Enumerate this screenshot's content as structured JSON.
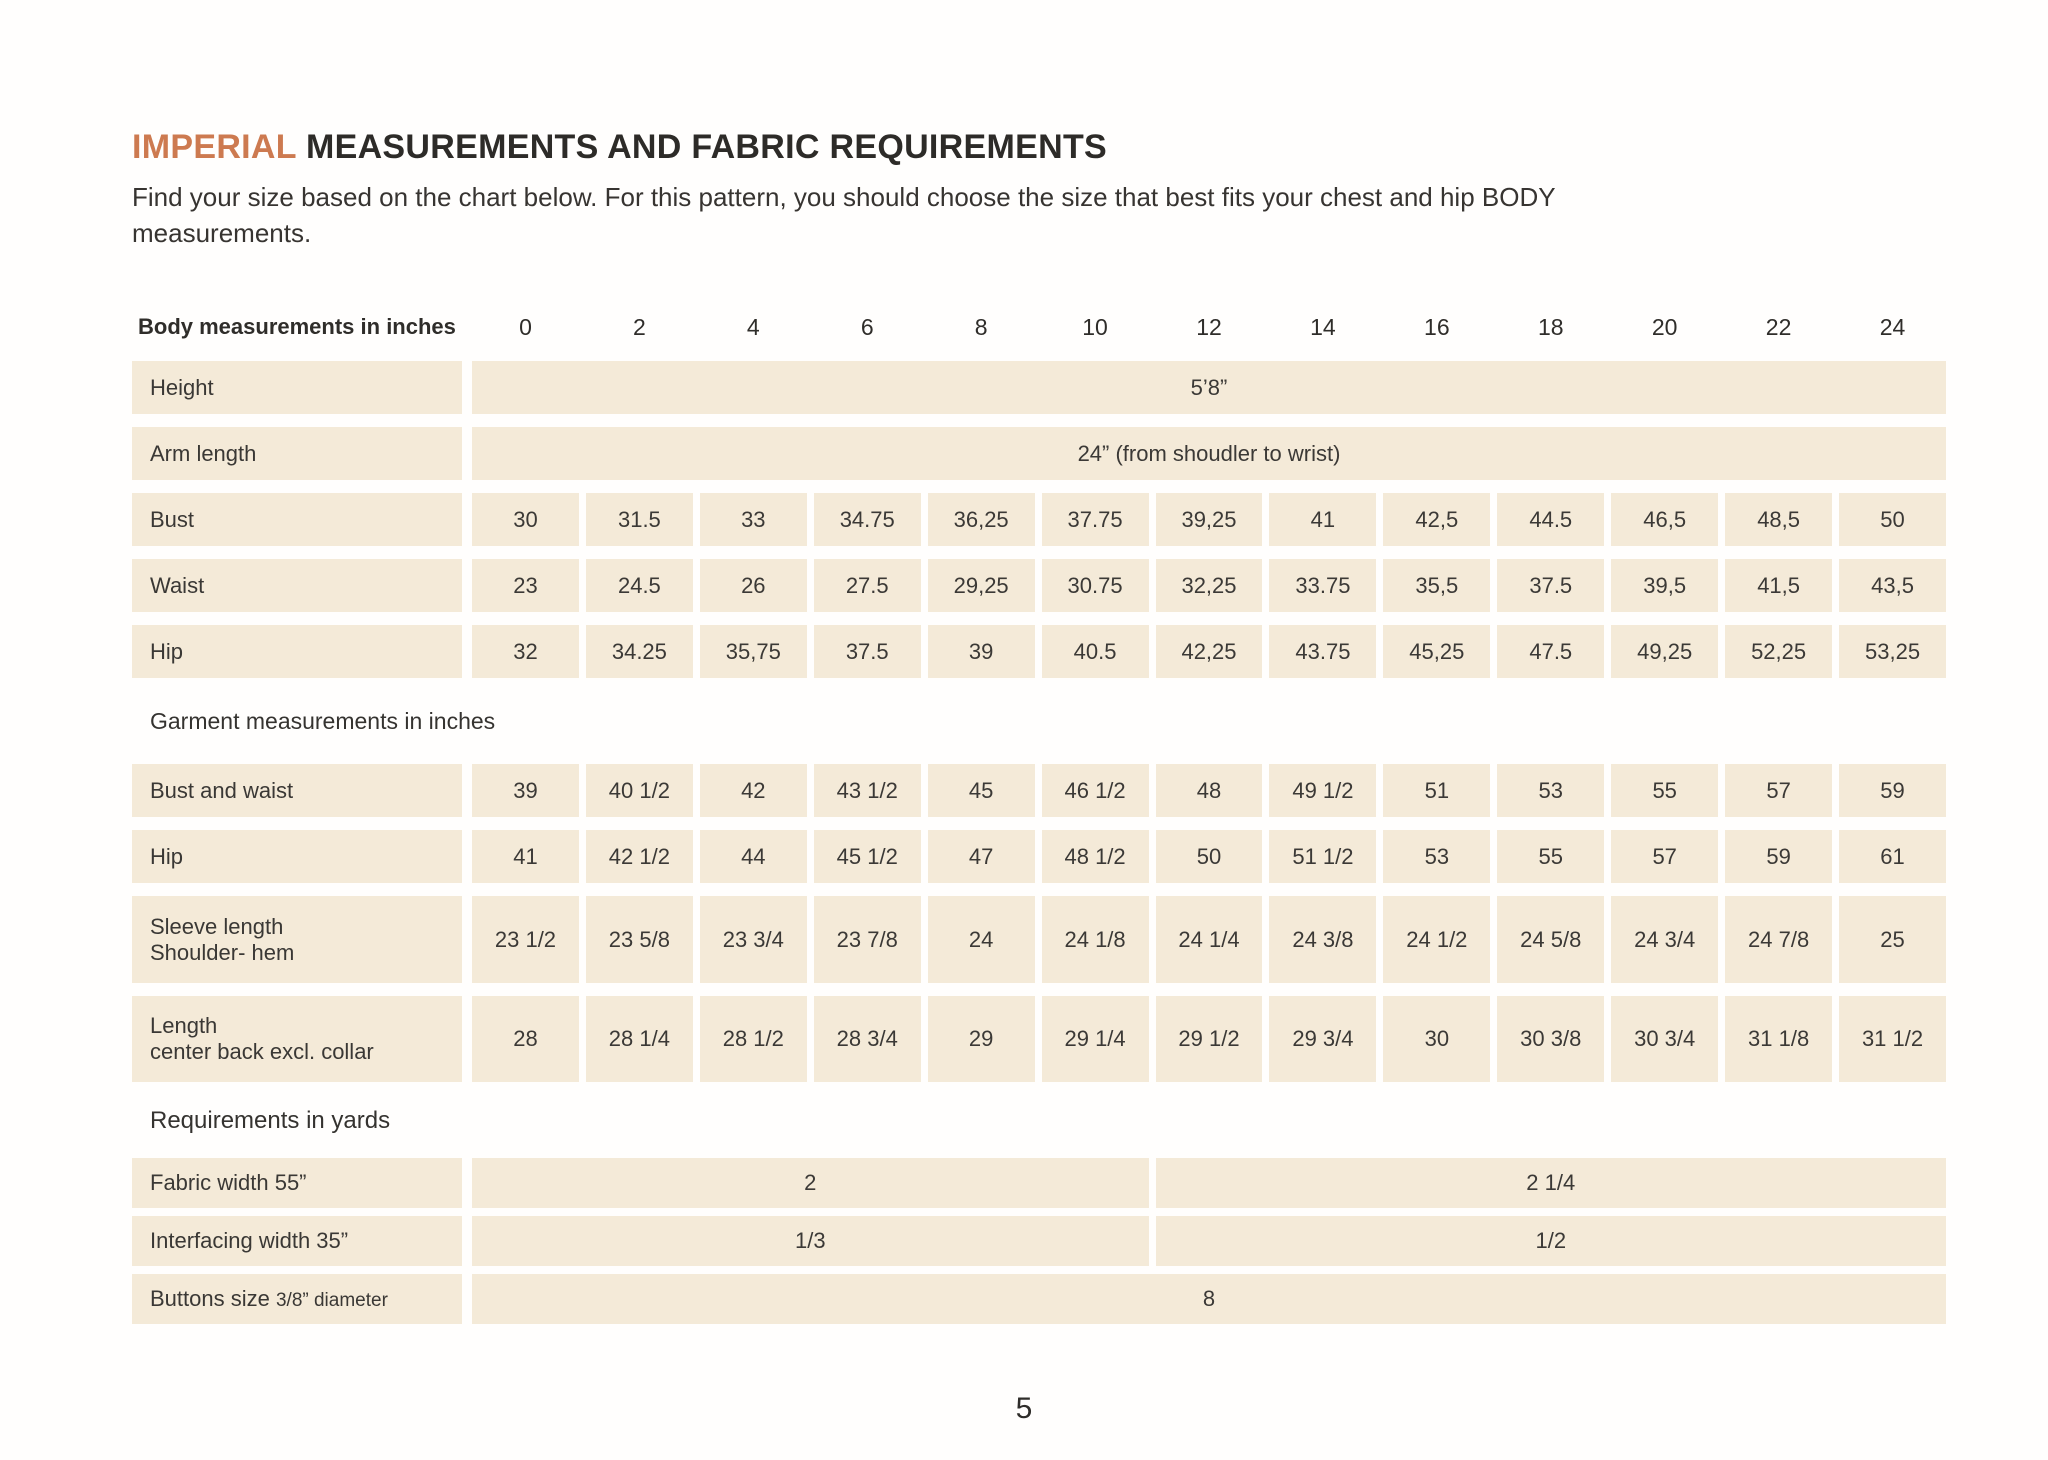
{
  "header": {
    "title_highlight": "IMPERIAL",
    "title_rest": " MEASUREMENTS AND FABRIC REQUIREMENTS",
    "subtitle_line1": "Find your size based on the chart below. For this pattern, you should choose the size that best fits your chest and hip BODY",
    "subtitle_line2": "measurements."
  },
  "footer": {
    "page_number": "5"
  },
  "colors": {
    "accent": "#cd7a50",
    "band": "#f4ead8",
    "text": "#3a3835"
  },
  "table": {
    "header_label": "Body measurements in inches",
    "sizes": [
      "0",
      "2",
      "4",
      "6",
      "8",
      "10",
      "12",
      "14",
      "16",
      "18",
      "20",
      "22",
      "24"
    ],
    "rows": [
      {
        "kind": "span",
        "label": "Height",
        "value": "5’8”"
      },
      {
        "kind": "span",
        "label": "Arm length",
        "value": "24” (from shoudler to wrist)"
      },
      {
        "kind": "cells",
        "label": "Bust",
        "values": [
          "30",
          "31.5",
          "33",
          "34.75",
          "36,25",
          "37.75",
          "39,25",
          "41",
          "42,5",
          "44.5",
          "46,5",
          "48,5",
          "50"
        ]
      },
      {
        "kind": "cells",
        "label": "Waist",
        "values": [
          "23",
          "24.5",
          "26",
          "27.5",
          "29,25",
          "30.75",
          "32,25",
          "33.75",
          "35,5",
          "37.5",
          "39,5",
          "41,5",
          "43,5"
        ]
      },
      {
        "kind": "cells",
        "label": "Hip",
        "values": [
          "32",
          "34.25",
          "35,75",
          "37.5",
          "39",
          "40.5",
          "42,25",
          "43.75",
          "45,25",
          "47.5",
          "49,25",
          "52,25",
          "53,25"
        ]
      },
      {
        "kind": "section",
        "text": "Garment measurements in inches",
        "style": "garment"
      },
      {
        "kind": "cells",
        "label": "Bust and waist",
        "values": [
          "39",
          "40 1/2",
          "42",
          "43 1/2",
          "45",
          "46 1/2",
          "48",
          "49 1/2",
          "51",
          "53",
          "55",
          "57",
          "59"
        ]
      },
      {
        "kind": "cells",
        "label": "Hip",
        "values": [
          "41",
          "42 1/2",
          "44",
          "45 1/2",
          "47",
          "48 1/2",
          "50",
          "51 1/2",
          "53",
          "55",
          "57",
          "59",
          "61"
        ]
      },
      {
        "kind": "cells",
        "label": "Sleeve length",
        "label2": "Shoulder- hem",
        "tall": "h87",
        "values": [
          "23 1/2",
          "23 5/8",
          "23 3/4",
          "23 7/8",
          "24",
          "24 1/8",
          "24 1/4",
          "24 3/8",
          "24 1/2",
          "24 5/8",
          "24 3/4",
          "24 7/8",
          "25"
        ]
      },
      {
        "kind": "cells",
        "label": "Length",
        "label2": "center back excl. collar",
        "tall": "h86",
        "values": [
          "28",
          "28 1/4",
          "28 1/2",
          "28 3/4",
          "29",
          "29 1/4",
          "29 1/2",
          "29 3/4",
          "30",
          "30 3/8",
          "30 3/4",
          "31 1/8",
          "31 1/2"
        ]
      },
      {
        "kind": "section",
        "text": "Requirements in yards",
        "style": "req"
      },
      {
        "kind": "split",
        "label": "Fabric width 55”",
        "left": "2",
        "right": "2 1/4"
      },
      {
        "kind": "split",
        "label": "Interfacing width 35”",
        "left": "1/3",
        "right": "1/2"
      },
      {
        "kind": "span",
        "label": "Buttons size",
        "label_small": "3/8” diameter",
        "value": "8",
        "req": true
      }
    ]
  }
}
